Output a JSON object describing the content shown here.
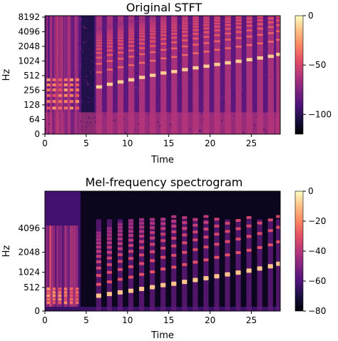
{
  "chart_data": [
    {
      "type": "heatmap",
      "title": "Original STFT",
      "xlabel": "Time",
      "ylabel": "Hz",
      "x_ticks": [
        "0",
        "5",
        "10",
        "15",
        "20",
        "25"
      ],
      "x_tick_values": [
        0,
        5,
        10,
        15,
        20,
        25
      ],
      "xlim": [
        0,
        28.5
      ],
      "y_scale": "log2",
      "y_ticks": [
        "0",
        "64",
        "128",
        "256",
        "512",
        "1024",
        "2048",
        "4096",
        "8192"
      ],
      "y_tick_values": [
        0,
        64,
        128,
        256,
        512,
        1024,
        2048,
        4096,
        8192
      ],
      "colorbar_ticks": [
        "0",
        "−50",
        "−100"
      ],
      "colorbar_tick_values": [
        0,
        -50,
        -100
      ],
      "colorbar_range": [
        -120,
        0
      ],
      "colormap": "magma",
      "note_onsets": [
        6.2,
        7.5,
        8.8,
        10.1,
        11.4,
        12.7,
        14.0,
        15.3,
        16.6,
        17.9,
        19.2,
        20.5,
        21.8,
        23.1,
        24.4,
        25.7,
        27.0,
        28.0
      ],
      "fundamental_hz": [
        300,
        340,
        380,
        420,
        470,
        520,
        580,
        620,
        680,
        740,
        800,
        870,
        940,
        1010,
        1090,
        1180,
        1280,
        1400
      ]
    },
    {
      "type": "heatmap",
      "title": "Mel-frequency spectrogram",
      "xlabel": "Time",
      "ylabel": "Hz",
      "x_ticks": [
        "0",
        "5",
        "10",
        "15",
        "20",
        "25"
      ],
      "x_tick_values": [
        0,
        5,
        10,
        15,
        20,
        25
      ],
      "xlim": [
        0,
        28.5
      ],
      "y_scale": "mel",
      "y_ticks": [
        "0",
        "512",
        "1024",
        "2048",
        "4096"
      ],
      "y_tick_values": [
        0,
        512,
        1024,
        2048,
        4096
      ],
      "colorbar_ticks": [
        "0",
        "−20",
        "−40",
        "−60",
        "−80"
      ],
      "colorbar_tick_values": [
        0,
        -20,
        -40,
        -60,
        -80
      ],
      "colorbar_range": [
        -80,
        0
      ],
      "colormap": "magma",
      "note_onsets": [
        6.2,
        7.5,
        8.8,
        10.1,
        11.4,
        12.7,
        14.0,
        15.3,
        16.6,
        17.9,
        19.2,
        20.5,
        21.8,
        23.1,
        24.4,
        25.7,
        27.0,
        28.0
      ],
      "fundamental_hz": [
        300,
        340,
        380,
        420,
        470,
        520,
        580,
        620,
        680,
        740,
        800,
        870,
        940,
        1010,
        1090,
        1180,
        1280,
        1400
      ]
    }
  ]
}
